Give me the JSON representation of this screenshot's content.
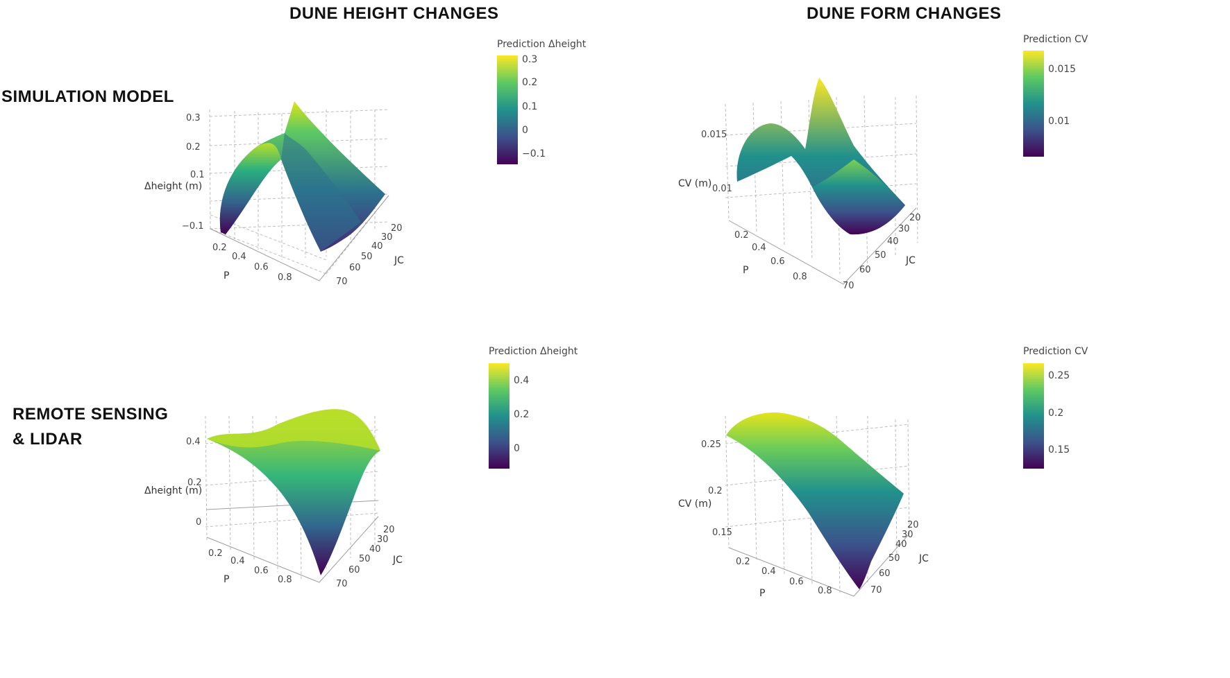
{
  "headers": {
    "left_column": "DUNE HEIGHT CHANGES",
    "right_column": "DUNE FORM CHANGES",
    "top_row": "SIMULATION MODEL",
    "bottom_row_line1": "REMOTE SENSING",
    "bottom_row_line2": "& LIDAR"
  },
  "colors": {
    "viridis": [
      "#440154",
      "#3b528b",
      "#21918c",
      "#5ec962",
      "#fde725"
    ]
  },
  "chart_data": [
    {
      "type": "surface3d",
      "panel": "simulation-height",
      "xlabel": "P",
      "ylabel": "JC",
      "zlabel": "Δheight (m)",
      "x_ticks": [
        "0.2",
        "0.4",
        "0.6",
        "0.8"
      ],
      "y_ticks": [
        "20",
        "30",
        "40",
        "50",
        "60",
        "70"
      ],
      "z_ticks": [
        "−0.1",
        "0.1",
        "0.2",
        "0.3"
      ],
      "colorbar_title": "Prediction Δheight",
      "colorbar_ticks": [
        "0.3",
        "0.2",
        "0.1",
        "0",
        "−0.1"
      ],
      "z_range": [
        -0.15,
        0.33
      ],
      "surface_shape": "ridge along P≈0.5, peak at low JC",
      "corner_values": {
        "p_low_jc_low": 0.1,
        "p_high_jc_low": 0.03,
        "p_low_jc_high": -0.12,
        "p_high_jc_high": -0.12
      },
      "peak_value": 0.33
    },
    {
      "type": "surface3d",
      "panel": "simulation-form",
      "xlabel": "P",
      "ylabel": "JC",
      "zlabel": "CV (m)",
      "x_ticks": [
        "0.2",
        "0.4",
        "0.6",
        "0.8"
      ],
      "y_ticks": [
        "20",
        "30",
        "40",
        "50",
        "60",
        "70"
      ],
      "z_ticks": [
        "0.01",
        "0.015"
      ],
      "colorbar_title": "Prediction CV",
      "colorbar_ticks": [
        "0.015",
        "0.01"
      ],
      "z_range": [
        0.006,
        0.0172
      ],
      "surface_shape": "peaks at low P / mid JC and mid P / low JC, minimum at high P / low JC",
      "peak_value": 0.0172
    },
    {
      "type": "surface3d",
      "panel": "lidar-height",
      "xlabel": "P",
      "ylabel": "JC",
      "zlabel": "Δheight (m)",
      "x_ticks": [
        "0.2",
        "0.4",
        "0.6",
        "0.8"
      ],
      "y_ticks": [
        "20",
        "30",
        "40",
        "50",
        "60",
        "70"
      ],
      "z_ticks": [
        "0",
        "0.2",
        "0.4"
      ],
      "colorbar_title": "Prediction Δheight",
      "colorbar_ticks": [
        "0.4",
        "0.2",
        "0"
      ],
      "z_range": [
        -0.12,
        0.5
      ],
      "surface_shape": "high edges, deep minimum at high P / high JC",
      "min_value": -0.12
    },
    {
      "type": "surface3d",
      "panel": "lidar-form",
      "xlabel": "P",
      "ylabel": "JC",
      "zlabel": "CV (m)",
      "x_ticks": [
        "0.2",
        "0.4",
        "0.6",
        "0.8"
      ],
      "y_ticks": [
        "20",
        "30",
        "40",
        "50",
        "60",
        "70"
      ],
      "z_ticks": [
        "0.15",
        "0.2",
        "0.25"
      ],
      "colorbar_title": "Prediction CV",
      "colorbar_ticks": [
        "0.25",
        "0.2",
        "0.15"
      ],
      "z_range": [
        0.12,
        0.275
      ],
      "surface_shape": "high at low P and low JC, decreasing toward high P / high JC",
      "min_value": 0.12
    }
  ]
}
